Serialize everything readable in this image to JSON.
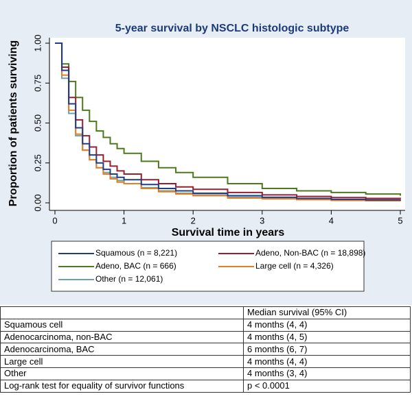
{
  "chart_data": {
    "type": "step",
    "title": "5-year survival by NSCLC histologic subtype",
    "x_label": "Survival time in years",
    "y_label": "Proportion of patients surviving",
    "x": [
      0,
      0.1,
      0.2,
      0.3,
      0.4,
      0.5,
      0.6,
      0.7,
      0.8,
      0.9,
      1.0,
      1.25,
      1.5,
      1.75,
      2,
      2.5,
      3,
      3.5,
      4,
      4.5,
      5
    ],
    "series": [
      {
        "name": "Squamous (n = 8,221)",
        "color": "#1f3c88",
        "values": [
          1,
          0.83,
          0.62,
          0.47,
          0.37,
          0.3,
          0.25,
          0.21,
          0.18,
          0.16,
          0.145,
          0.115,
          0.09,
          0.075,
          0.06,
          0.045,
          0.035,
          0.028,
          0.022,
          0.018,
          0.015
        ]
      },
      {
        "name": "Adeno, Non-BAC (n = 18,898)",
        "color": "#9b1c2e",
        "values": [
          1,
          0.85,
          0.66,
          0.52,
          0.42,
          0.35,
          0.3,
          0.26,
          0.23,
          0.2,
          0.18,
          0.145,
          0.12,
          0.1,
          0.085,
          0.065,
          0.05,
          0.04,
          0.033,
          0.028,
          0.025
        ]
      },
      {
        "name": "Adeno, BAC (n = 666)",
        "color": "#4a7a1c",
        "values": [
          1,
          0.87,
          0.76,
          0.66,
          0.58,
          0.51,
          0.45,
          0.41,
          0.37,
          0.34,
          0.31,
          0.26,
          0.22,
          0.19,
          0.16,
          0.12,
          0.09,
          0.075,
          0.065,
          0.055,
          0.045
        ]
      },
      {
        "name": "Large cell (n = 4,326)",
        "color": "#e67e22",
        "values": [
          1,
          0.8,
          0.58,
          0.43,
          0.33,
          0.27,
          0.22,
          0.18,
          0.15,
          0.13,
          0.12,
          0.09,
          0.07,
          0.055,
          0.045,
          0.03,
          0.025,
          0.02,
          0.015,
          0.013,
          0.01
        ]
      },
      {
        "name": "Other (n = 12,061)",
        "color": "#6a9fb0",
        "values": [
          1,
          0.78,
          0.56,
          0.42,
          0.33,
          0.27,
          0.22,
          0.19,
          0.16,
          0.14,
          0.12,
          0.095,
          0.075,
          0.06,
          0.05,
          0.035,
          0.028,
          0.022,
          0.018,
          0.015,
          0.013
        ]
      }
    ],
    "xlim": [
      0,
      5
    ],
    "xticks": [
      0,
      1,
      2,
      3,
      4,
      5
    ],
    "ylim": [
      0,
      1
    ],
    "yticks": [
      {
        "value": 0,
        "label": "0.00"
      },
      {
        "value": 0.25,
        "label": "0.25"
      },
      {
        "value": 0.5,
        "label": "0.50"
      },
      {
        "value": 0.75,
        "label": "0.75"
      },
      {
        "value": 1,
        "label": "1.00"
      }
    ]
  },
  "table": {
    "header": [
      "",
      "Median survival (95% CI)"
    ],
    "rows": [
      [
        "Squamous cell",
        "4 months (4, 4)"
      ],
      [
        "Adenocarcinoma, non-BAC",
        "4 months (4, 5)"
      ],
      [
        "Adenocarcinoma, BAC",
        "6 months (6, 7)"
      ],
      [
        "Large cell",
        "4 months (4, 4)"
      ],
      [
        "Other",
        "4 months (3, 4)"
      ],
      [
        "Log-rank test for equality of survivor functions",
        "p < 0.0001"
      ]
    ]
  }
}
